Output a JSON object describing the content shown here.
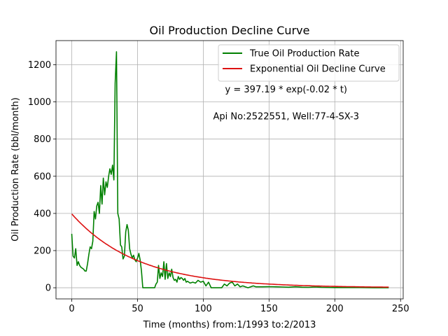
{
  "chart_data": {
    "type": "line",
    "title": "Oil Production Decline Curve",
    "xlabel": "Time (months) from:1/1993 to:2/2013",
    "ylabel": "Oil Production Rate (bbl/month)",
    "xlim": [
      -12,
      252
    ],
    "ylim": [
      -60,
      1330
    ],
    "xticks": [
      0,
      50,
      100,
      150,
      200,
      250
    ],
    "yticks": [
      0,
      200,
      400,
      600,
      800,
      1000,
      1200
    ],
    "xtick_labels": [
      "0",
      "50",
      "100",
      "150",
      "200",
      "250"
    ],
    "ytick_labels": [
      "0",
      "200",
      "400",
      "600",
      "800",
      "1000",
      "1200"
    ],
    "grid": true,
    "legend_position": "top-right",
    "annotations": [
      {
        "text": "y = 397.19 * exp(-0.02 * t)",
        "x": 163,
        "y": 1052
      },
      {
        "text": "Api No:2522551, Well:77-4-SX-3",
        "x": 163,
        "y": 907
      }
    ],
    "series": [
      {
        "name": "True Oil Production Rate",
        "color": "#008000",
        "x": [
          0,
          1,
          2,
          3,
          4,
          5,
          6,
          7,
          8,
          9,
          10,
          11,
          12,
          13,
          14,
          15,
          16,
          17,
          18,
          19,
          20,
          21,
          22,
          23,
          24,
          25,
          26,
          27,
          28,
          29,
          30,
          31,
          32,
          33,
          34,
          35,
          36,
          37,
          38,
          39,
          40,
          41,
          42,
          43,
          44,
          45,
          46,
          47,
          48,
          49,
          50,
          51,
          52,
          53,
          54,
          55,
          56,
          57,
          58,
          59,
          60,
          61,
          62,
          63,
          64,
          65,
          66,
          67,
          68,
          69,
          70,
          71,
          72,
          73,
          74,
          75,
          76,
          77,
          78,
          79,
          80,
          81,
          82,
          83,
          84,
          85,
          86,
          87,
          88,
          89,
          90,
          92,
          94,
          96,
          98,
          100,
          102,
          104,
          106,
          108,
          110,
          112,
          114,
          116,
          118,
          120,
          122,
          124,
          126,
          128,
          130,
          132,
          134,
          136,
          138,
          140,
          145,
          150,
          155,
          160,
          165,
          170,
          175,
          180,
          185,
          190,
          200,
          210,
          220,
          230,
          241
        ],
        "y": [
          290,
          170,
          160,
          210,
          120,
          140,
          120,
          110,
          105,
          100,
          90,
          90,
          130,
          180,
          220,
          210,
          250,
          410,
          370,
          440,
          460,
          400,
          550,
          450,
          590,
          500,
          570,
          540,
          600,
          640,
          610,
          660,
          580,
          1100,
          1270,
          400,
          370,
          230,
          220,
          155,
          170,
          300,
          340,
          310,
          210,
          180,
          160,
          175,
          150,
          140,
          160,
          185,
          150,
          90,
          0,
          0,
          0,
          0,
          0,
          0,
          0,
          0,
          0,
          0,
          20,
          30,
          120,
          50,
          80,
          60,
          140,
          45,
          130,
          50,
          80,
          60,
          100,
          55,
          40,
          45,
          30,
          60,
          45,
          55,
          50,
          40,
          50,
          30,
          35,
          30,
          25,
          30,
          25,
          40,
          30,
          35,
          10,
          30,
          0,
          0,
          0,
          0,
          0,
          20,
          10,
          25,
          30,
          10,
          20,
          5,
          10,
          5,
          0,
          5,
          10,
          5,
          5,
          6,
          5,
          4,
          3,
          5,
          3,
          2,
          4,
          2,
          1,
          1,
          1,
          0,
          0
        ]
      },
      {
        "name": "Exponential Oil Decline Curve",
        "color": "#dd1111",
        "equation": "y = 397.19 * exp(-0.02 * t)",
        "a": 397.19,
        "b": -0.02,
        "x_range": [
          0,
          241
        ]
      }
    ]
  }
}
